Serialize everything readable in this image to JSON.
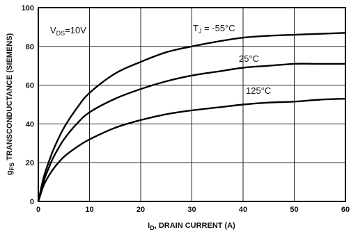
{
  "chart_data": {
    "type": "line",
    "title": "",
    "xlabel": {
      "prefix": "I",
      "sub": "D",
      "rest": ", DRAIN CURRENT (A)"
    },
    "ylabel": {
      "prefix": "g",
      "sub": "FS",
      "rest": " TRANSCONDUCTANCE (SIEMENS)"
    },
    "xlim": [
      0,
      60
    ],
    "ylim": [
      0,
      100
    ],
    "xticks": [
      0,
      10,
      20,
      30,
      40,
      50,
      60
    ],
    "yticks": [
      0,
      20,
      40,
      60,
      80,
      100
    ],
    "grid": true,
    "annotation": {
      "prefix": "V",
      "sub": "DS",
      "rest": "=10V"
    },
    "series": [
      {
        "name": {
          "prefix": "T",
          "sub": "J",
          "rest": " = -55°C"
        },
        "x": [
          0,
          1,
          2,
          3,
          5,
          7.5,
          10,
          15,
          20,
          25,
          30,
          35,
          40,
          45,
          50,
          55,
          60
        ],
        "y": [
          0,
          12,
          20,
          27,
          38,
          48,
          56,
          66,
          72,
          77,
          80,
          82.5,
          84.5,
          85.5,
          86,
          86.5,
          87
        ]
      },
      {
        "name": {
          "prefix": "",
          "sub": "",
          "rest": "25°C"
        },
        "x": [
          0,
          1,
          2,
          3,
          5,
          7.5,
          10,
          15,
          20,
          25,
          30,
          35,
          40,
          45,
          50,
          55,
          60
        ],
        "y": [
          0,
          10,
          17,
          23,
          32,
          40,
          46,
          53,
          58,
          62,
          65,
          67,
          69,
          70,
          71,
          71,
          71
        ]
      },
      {
        "name": {
          "prefix": "",
          "sub": "",
          "rest": "125°C"
        },
        "x": [
          0,
          1,
          2,
          3,
          5,
          7.5,
          10,
          15,
          20,
          25,
          30,
          35,
          40,
          45,
          50,
          55,
          60
        ],
        "y": [
          0,
          8,
          13,
          17,
          23,
          28,
          32,
          38,
          42,
          45,
          47,
          48.5,
          50,
          51,
          51.5,
          52.5,
          53
        ]
      }
    ]
  }
}
